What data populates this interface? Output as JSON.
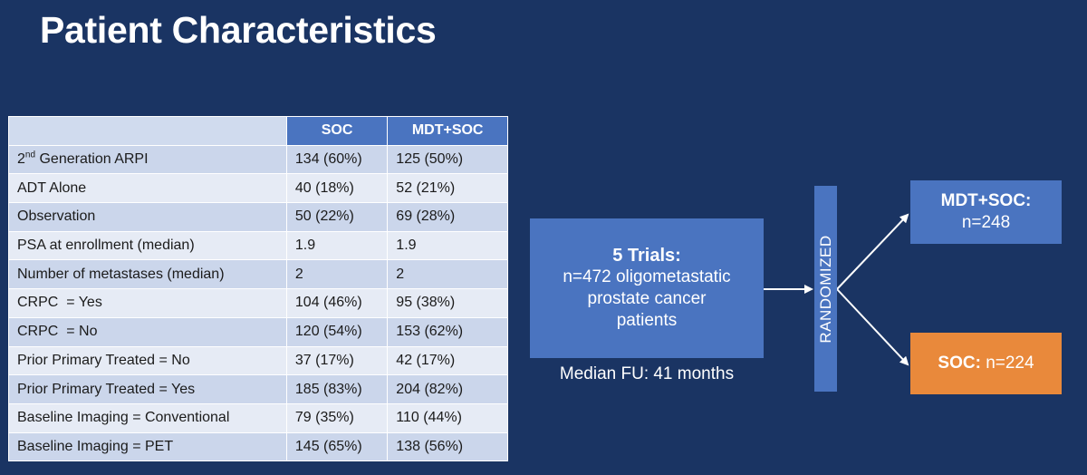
{
  "title": "Patient Characteristics",
  "table": {
    "headers": [
      "",
      "SOC",
      "MDT+SOC"
    ],
    "rows": [
      {
        "label_main": "2",
        "label_sup": "nd",
        "label_rest": " Generation ARPI",
        "soc": "134 (60%)",
        "mdt": "125 (50%)"
      },
      {
        "label": "ADT Alone",
        "soc": "40 (18%)",
        "mdt": "52 (21%)"
      },
      {
        "label": "Observation",
        "soc": "50 (22%)",
        "mdt": "69 (28%)"
      },
      {
        "label": "PSA at enrollment (median)",
        "soc": "1.9",
        "mdt": "1.9"
      },
      {
        "label": "Number of metastases (median)",
        "soc": "2",
        "mdt": "2"
      },
      {
        "label": "CRPC  = Yes",
        "soc": "104 (46%)",
        "mdt": "95 (38%)"
      },
      {
        "label": "CRPC  = No",
        "soc": "120 (54%)",
        "mdt": "153 (62%)"
      },
      {
        "label": "Prior Primary Treated = No",
        "soc": "37 (17%)",
        "mdt": "42 (17%)"
      },
      {
        "label": "Prior Primary Treated = Yes",
        "soc": "185 (83%)",
        "mdt": "204 (82%)"
      },
      {
        "label": "Baseline Imaging = Conventional",
        "soc": "79 (35%)",
        "mdt": "110 (44%)"
      },
      {
        "label": "Baseline Imaging = PET",
        "soc": "145 (65%)",
        "mdt": "138 (56%)"
      }
    ]
  },
  "diagram": {
    "trials_title": "5 Trials:",
    "trials_line1": "n=472 oligometastatic",
    "trials_line2": "prostate cancer",
    "trials_line3": "patients",
    "median_fu": "Median FU: 41 months",
    "randomized": "RANDOMIZED",
    "arm_mdt_name": "MDT+SOC:",
    "arm_mdt_n": "n=248",
    "arm_soc_name": "SOC:",
    "arm_soc_n": " n=224"
  },
  "colors": {
    "background": "#1a3463",
    "box_blue": "#4a74c0",
    "box_orange": "#e9893b"
  }
}
